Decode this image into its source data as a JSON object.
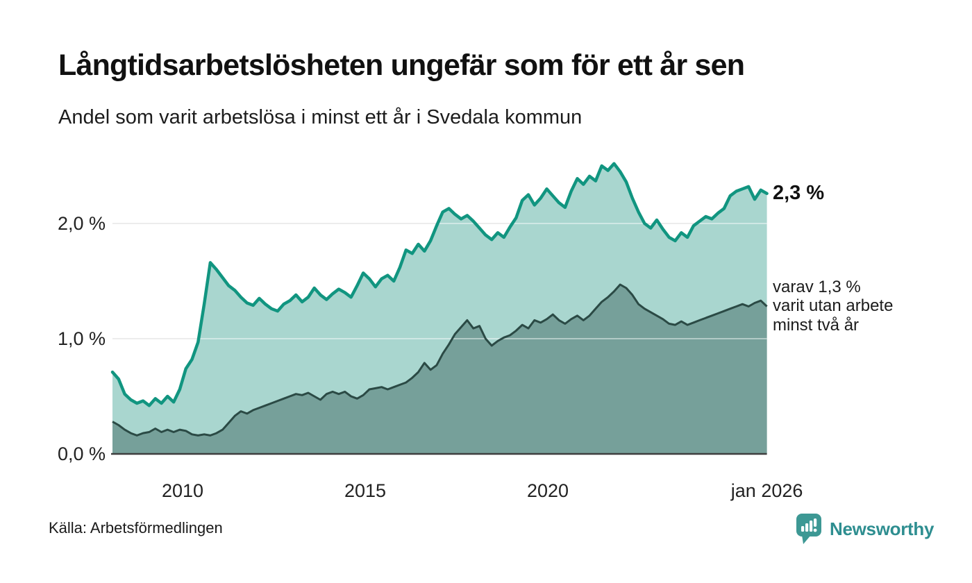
{
  "header": {
    "title": "Långtidsarbetslösheten ungefär som för ett år sen",
    "subtitle": "Andel som varit arbetslösa i minst ett år i Svedala kommun"
  },
  "annotations": {
    "total_label": "2,3 %",
    "sub_lines": [
      "varav 1,3 %",
      "varit utan arbete",
      "minst två år"
    ]
  },
  "footer": {
    "source": "Källa: Arbetsförmedlingen",
    "brand": "Newsworthy"
  },
  "colors": {
    "line_total": "#119580",
    "fill_total": "#a9d6cf",
    "line_sub": "#2b4a45",
    "fill_sub": "#76a09a",
    "grid": "#dcdcdc",
    "grid_overlay": "rgba(255,255,255,0.45)",
    "baseline": "#3f3f3f",
    "brand_teal": "#3d9894"
  },
  "chart_data": {
    "type": "area",
    "title": "Långtidsarbetslösheten ungefär som för ett år sen",
    "subtitle": "Andel som varit arbetslösa i minst ett år i Svedala kommun",
    "xlabel": "",
    "ylabel": "",
    "unit": "%",
    "x_start": 2008.08,
    "x_end": 2026.0,
    "ylim": [
      0,
      2.7
    ],
    "grid": "horizontal",
    "legend_position": "end-of-line labels",
    "y_ticks": [
      {
        "label": "0,0 %",
        "value": 0
      },
      {
        "label": "1,0 %",
        "value": 1
      },
      {
        "label": "2,0 %",
        "value": 2
      }
    ],
    "x_ticks": [
      {
        "label": "2010",
        "x": 2010
      },
      {
        "label": "2015",
        "x": 2015
      },
      {
        "label": "2020",
        "x": 2020
      },
      {
        "label": "jan 2026",
        "x": 2026
      }
    ],
    "series": [
      {
        "name": "Andel som varit arbetslösa i minst ett år",
        "end_value": 2.3,
        "end_label": "2,3 %",
        "values": [
          0.71,
          0.65,
          0.52,
          0.47,
          0.44,
          0.46,
          0.42,
          0.48,
          0.44,
          0.5,
          0.45,
          0.56,
          0.74,
          0.82,
          0.97,
          1.3,
          1.66,
          1.6,
          1.53,
          1.46,
          1.42,
          1.36,
          1.31,
          1.29,
          1.35,
          1.3,
          1.26,
          1.24,
          1.3,
          1.33,
          1.38,
          1.32,
          1.36,
          1.44,
          1.38,
          1.34,
          1.39,
          1.43,
          1.4,
          1.36,
          1.46,
          1.57,
          1.52,
          1.45,
          1.52,
          1.55,
          1.5,
          1.62,
          1.77,
          1.74,
          1.82,
          1.76,
          1.85,
          1.98,
          2.1,
          2.13,
          2.08,
          2.04,
          2.07,
          2.02,
          1.96,
          1.9,
          1.86,
          1.92,
          1.88,
          1.97,
          2.05,
          2.2,
          2.25,
          2.16,
          2.22,
          2.3,
          2.24,
          2.18,
          2.14,
          2.28,
          2.39,
          2.34,
          2.41,
          2.37,
          2.5,
          2.46,
          2.52,
          2.45,
          2.36,
          2.22,
          2.1,
          2.0,
          1.96,
          2.03,
          1.95,
          1.88,
          1.85,
          1.92,
          1.88,
          1.98,
          2.02,
          2.06,
          2.04,
          2.09,
          2.13,
          2.24,
          2.28,
          2.3,
          2.32,
          2.21,
          2.29,
          2.26
        ]
      },
      {
        "name": "varav utan arbete minst två år",
        "end_value": 1.3,
        "end_label": "varav 1,3 % varit utan arbete minst två år",
        "values": [
          0.28,
          0.25,
          0.21,
          0.18,
          0.16,
          0.18,
          0.19,
          0.22,
          0.19,
          0.21,
          0.19,
          0.21,
          0.2,
          0.17,
          0.16,
          0.17,
          0.16,
          0.18,
          0.21,
          0.27,
          0.33,
          0.37,
          0.35,
          0.38,
          0.4,
          0.42,
          0.44,
          0.46,
          0.48,
          0.5,
          0.52,
          0.51,
          0.53,
          0.5,
          0.47,
          0.52,
          0.54,
          0.52,
          0.54,
          0.5,
          0.48,
          0.51,
          0.56,
          0.57,
          0.58,
          0.56,
          0.58,
          0.6,
          0.62,
          0.66,
          0.71,
          0.79,
          0.73,
          0.77,
          0.87,
          0.95,
          1.04,
          1.1,
          1.16,
          1.09,
          1.11,
          1.0,
          0.94,
          0.98,
          1.01,
          1.03,
          1.07,
          1.12,
          1.09,
          1.16,
          1.14,
          1.17,
          1.21,
          1.16,
          1.13,
          1.17,
          1.2,
          1.16,
          1.2,
          1.26,
          1.32,
          1.36,
          1.41,
          1.47,
          1.44,
          1.38,
          1.3,
          1.26,
          1.23,
          1.2,
          1.17,
          1.13,
          1.12,
          1.15,
          1.12,
          1.14,
          1.16,
          1.18,
          1.2,
          1.22,
          1.24,
          1.26,
          1.28,
          1.3,
          1.28,
          1.31,
          1.33,
          1.28
        ]
      }
    ]
  }
}
